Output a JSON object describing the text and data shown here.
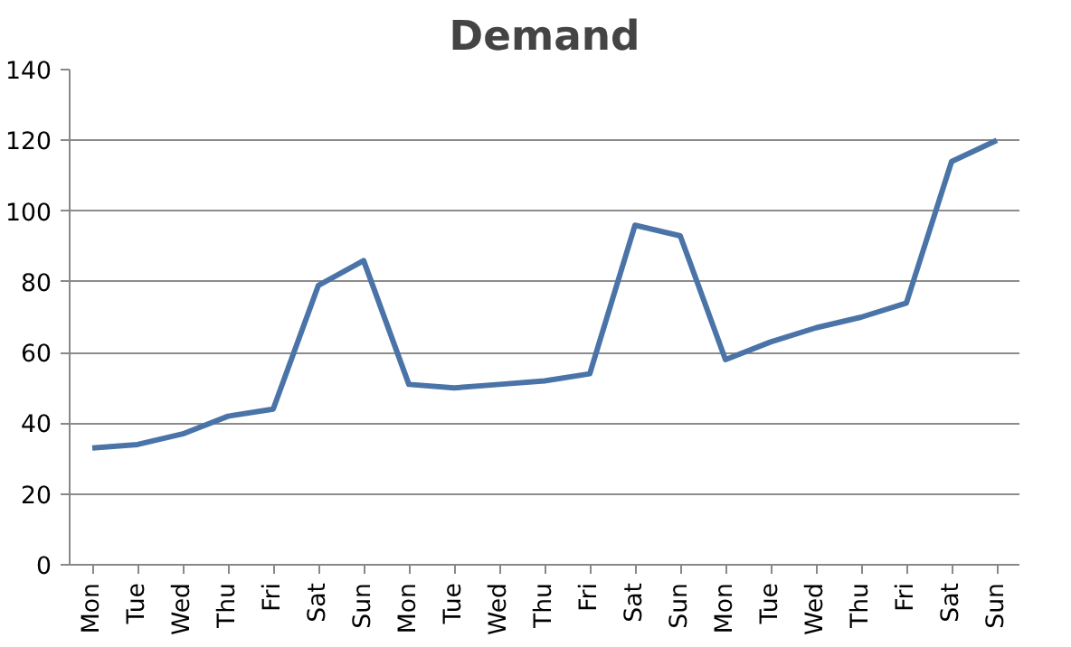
{
  "chart_data": {
    "type": "line",
    "title": "Demand",
    "categories": [
      "Mon",
      "Tue",
      "Wed",
      "Thu",
      "Fri",
      "Sat",
      "Sun",
      "Mon",
      "Tue",
      "Wed",
      "Thu",
      "Fri",
      "Sat",
      "Sun",
      "Mon",
      "Tue",
      "Wed",
      "Thu",
      "Fri",
      "Sat",
      "Sun"
    ],
    "series": [
      {
        "color": "#4a74a8",
        "values": [
          33,
          34,
          37,
          42,
          44,
          79,
          86,
          51,
          50,
          51,
          52,
          54,
          96,
          93,
          58,
          63,
          67,
          70,
          74,
          114,
          120
        ]
      }
    ],
    "ylim": [
      0,
      140
    ],
    "yticks": [
      0,
      20,
      40,
      60,
      80,
      100,
      120,
      140
    ],
    "grid": "y",
    "marker": "none",
    "line_style": "solid"
  }
}
